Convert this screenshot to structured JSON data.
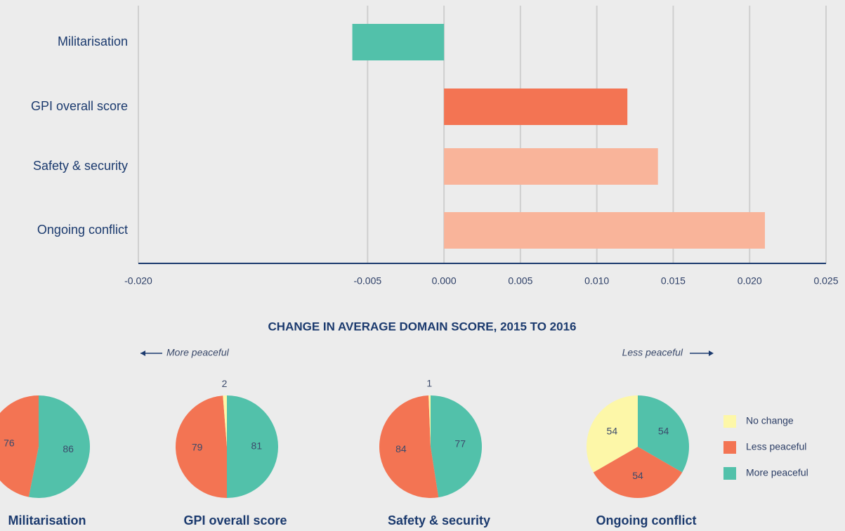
{
  "chart_data": [
    {
      "type": "barh",
      "categories": [
        "Militarisation",
        "GPI overall score",
        "Safety & security",
        "Ongoing conflict"
      ],
      "values": [
        -0.006,
        0.012,
        0.014,
        0.021
      ],
      "colors": [
        "#52c1aa",
        "#f37453",
        "#f9b49a",
        "#f9b49a"
      ],
      "xlim": [
        -0.02,
        0.025
      ],
      "xticks": [
        {
          "value": -0.02,
          "label": "-0.020"
        },
        -0.005,
        {
          "value": 0,
          "label": "0.000"
        },
        0.005,
        {
          "value": 0.01,
          "label": "0.010"
        },
        0.015,
        {
          "value": 0.02,
          "label": "0.020"
        },
        0.025
      ],
      "xlabel": "CHANGE IN AVERAGE DOMAIN SCORE, 2015 TO 2016",
      "annotations": [
        "More peaceful",
        "Less peaceful"
      ],
      "grid": true
    },
    {
      "type": "pie",
      "categories": [
        "No change",
        "Less peaceful",
        "More peaceful"
      ],
      "colors": [
        "#fdf7a8",
        "#f37453",
        "#52c1aa"
      ],
      "series": [
        {
          "name": "Militarisation",
          "values": [
            0,
            76,
            86
          ]
        },
        {
          "name": "GPI overall score",
          "values": [
            2,
            79,
            81
          ]
        },
        {
          "name": "Safety & security",
          "values": [
            1,
            84,
            77
          ]
        },
        {
          "name": "Ongoing conflict",
          "values": [
            54,
            54,
            54
          ]
        }
      ],
      "legend": "right"
    }
  ]
}
